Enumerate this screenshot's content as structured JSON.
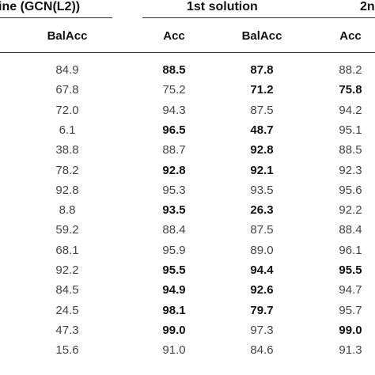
{
  "header": {
    "group_baseline": "ine (GCN(L2))",
    "group_first": "1st solution",
    "group_second": "2n"
  },
  "columns": [
    "BalAcc",
    "Acc",
    "BalAcc",
    "Acc"
  ],
  "rows": [
    {
      "c1": "84.9",
      "c2": "88.5",
      "c2_bold": true,
      "c3": "87.8",
      "c3_bold": true,
      "c4": "88.2",
      "c4_bold": false
    },
    {
      "c1": "67.8",
      "c2": "75.2",
      "c2_bold": false,
      "c3": "71.2",
      "c3_bold": true,
      "c4": "75.8",
      "c4_bold": true
    },
    {
      "c1": "72.0",
      "c2": "94.3",
      "c2_bold": false,
      "c3": "87.5",
      "c3_bold": false,
      "c4": "94.2",
      "c4_bold": false
    },
    {
      "c1": "6.1",
      "c2": "96.5",
      "c2_bold": true,
      "c3": "48.7",
      "c3_bold": true,
      "c4": "95.1",
      "c4_bold": false
    },
    {
      "c1": "38.8",
      "c2": "88.7",
      "c2_bold": false,
      "c3": "92.8",
      "c3_bold": true,
      "c4": "88.5",
      "c4_bold": false
    },
    {
      "c1": "78.2",
      "c2": "92.8",
      "c2_bold": true,
      "c3": "92.1",
      "c3_bold": true,
      "c4": "92.3",
      "c4_bold": false
    },
    {
      "c1": "92.8",
      "c2": "95.3",
      "c2_bold": false,
      "c3": "93.5",
      "c3_bold": false,
      "c4": "95.6",
      "c4_bold": false
    },
    {
      "c1": "8.8",
      "c2": "93.5",
      "c2_bold": true,
      "c3": "26.3",
      "c3_bold": true,
      "c4": "92.2",
      "c4_bold": false
    },
    {
      "c1": "59.2",
      "c2": "88.4",
      "c2_bold": false,
      "c3": "87.5",
      "c3_bold": false,
      "c4": "88.4",
      "c4_bold": false
    },
    {
      "c1": "68.1",
      "c2": "95.9",
      "c2_bold": false,
      "c3": "89.0",
      "c3_bold": false,
      "c4": "96.1",
      "c4_bold": false
    },
    {
      "c1": "92.2",
      "c2": "95.5",
      "c2_bold": true,
      "c3": "94.4",
      "c3_bold": true,
      "c4": "95.5",
      "c4_bold": true
    },
    {
      "c1": "84.5",
      "c2": "94.9",
      "c2_bold": true,
      "c3": "92.6",
      "c3_bold": true,
      "c4": "94.7",
      "c4_bold": false
    },
    {
      "c1": "24.5",
      "c2": "98.1",
      "c2_bold": true,
      "c3": "79.7",
      "c3_bold": true,
      "c4": "95.7",
      "c4_bold": false
    },
    {
      "c1": "47.3",
      "c2": "99.0",
      "c2_bold": true,
      "c3": "97.3",
      "c3_bold": false,
      "c4": "99.0",
      "c4_bold": true
    },
    {
      "c1": "15.6",
      "c2": "91.0",
      "c2_bold": false,
      "c3": "84.6",
      "c3_bold": false,
      "c4": "91.3",
      "c4_bold": false
    }
  ]
}
